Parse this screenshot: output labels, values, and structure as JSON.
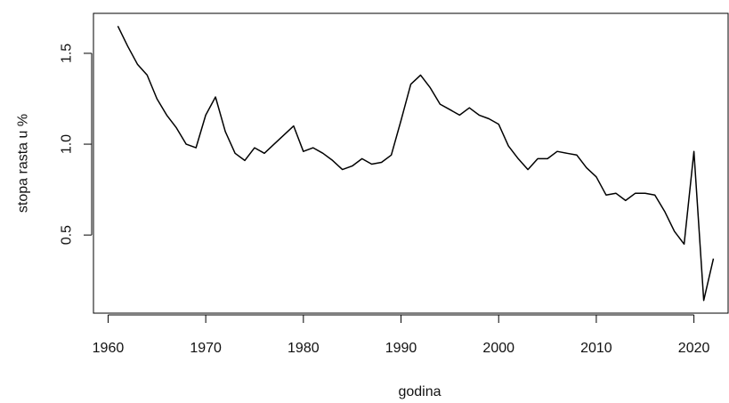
{
  "chart_data": {
    "type": "line",
    "title": "",
    "xlabel": "godina",
    "ylabel": "stopa rasta u %",
    "xlim": [
      1958.5,
      2023.5
    ],
    "ylim": [
      0.07,
      1.72
    ],
    "x_ticks": [
      1960,
      1970,
      1980,
      1990,
      2000,
      2010,
      2020
    ],
    "y_ticks": [
      0.5,
      1.0,
      1.5
    ],
    "x_tick_labels": [
      "1960",
      "1970",
      "1980",
      "1990",
      "2000",
      "2010",
      "2020"
    ],
    "y_tick_labels": [
      "0.5",
      "1.0",
      "1.5"
    ],
    "grid": false,
    "series": [
      {
        "color": "#000000",
        "x": [
          1961,
          1962,
          1963,
          1964,
          1965,
          1966,
          1967,
          1968,
          1969,
          1970,
          1971,
          1972,
          1973,
          1974,
          1975,
          1976,
          1977,
          1978,
          1979,
          1980,
          1981,
          1982,
          1983,
          1984,
          1985,
          1986,
          1987,
          1988,
          1989,
          1990,
          1991,
          1992,
          1993,
          1994,
          1995,
          1996,
          1997,
          1998,
          1999,
          2000,
          2001,
          2002,
          2003,
          2004,
          2005,
          2006,
          2007,
          2008,
          2009,
          2010,
          2011,
          2012,
          2013,
          2014,
          2015,
          2016,
          2017,
          2018,
          2019,
          2020,
          2021,
          2022
        ],
        "values": [
          1.65,
          1.54,
          1.44,
          1.38,
          1.25,
          1.16,
          1.09,
          1.0,
          0.98,
          1.16,
          1.26,
          1.07,
          0.95,
          0.91,
          0.98,
          0.95,
          1.0,
          1.05,
          1.1,
          0.96,
          0.98,
          0.95,
          0.91,
          0.86,
          0.88,
          0.92,
          0.89,
          0.9,
          0.94,
          1.13,
          1.33,
          1.38,
          1.31,
          1.22,
          1.19,
          1.16,
          1.2,
          1.16,
          1.14,
          1.11,
          0.99,
          0.92,
          0.86,
          0.92,
          0.92,
          0.96,
          0.95,
          0.94,
          0.87,
          0.82,
          0.72,
          0.73,
          0.69,
          0.73,
          0.73,
          0.72,
          0.63,
          0.52,
          0.45,
          0.96,
          0.14,
          0.37
        ]
      }
    ]
  }
}
